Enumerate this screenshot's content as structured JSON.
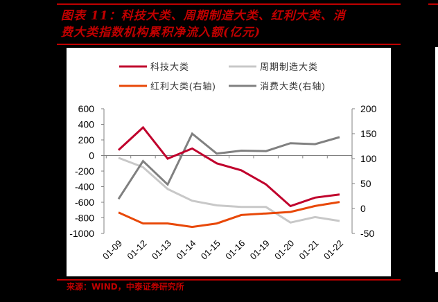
{
  "title": {
    "line1": "图表 11：科技大类、周期制造大类、红利大类、消",
    "line2": "费大类指数机构累积净流入额(亿元)"
  },
  "source": "来源：WIND，中泰证券研究所",
  "colors": {
    "title_red": "#c00000",
    "tech": "#c0002c",
    "cyclical": "#c8c8c8",
    "dividend": "#e84808",
    "consumer": "#808080",
    "axis": "#808080"
  },
  "legend": {
    "items": [
      {
        "label": "科技大类",
        "color": "#c0002c"
      },
      {
        "label": "周期制造大类",
        "color": "#c8c8c8"
      },
      {
        "label": "红利大类(右轴)",
        "color": "#e84808"
      },
      {
        "label": "消费大类(右轴)",
        "color": "#808080"
      }
    ]
  },
  "chart_data": {
    "type": "line",
    "title": "科技大类、周期制造大类、红利大类、消费大类指数机构累积净流入额(亿元)",
    "xlabel": "",
    "ylabel": "",
    "categories": [
      "01-09",
      "01-12",
      "01-13",
      "01-14",
      "01-15",
      "01-16",
      "01-19",
      "01-20",
      "01-21",
      "01-22"
    ],
    "left_axis": {
      "ylim": [
        -1000,
        600
      ],
      "ticks": [
        600,
        400,
        200,
        0,
        -200,
        -400,
        -600,
        -800,
        -1000
      ]
    },
    "right_axis": {
      "ylim": [
        -50,
        200
      ],
      "ticks": [
        200,
        150,
        100,
        50,
        0,
        -50
      ]
    },
    "series": [
      {
        "name": "科技大类",
        "axis": "left",
        "values": [
          70,
          360,
          -40,
          90,
          -100,
          -190,
          -370,
          -650,
          -540,
          -500
        ]
      },
      {
        "name": "周期制造大类",
        "axis": "left",
        "values": [
          -30,
          -150,
          -430,
          -580,
          -640,
          -660,
          -660,
          -860,
          -790,
          -840
        ]
      },
      {
        "name": "红利大类(右轴)",
        "axis": "right",
        "values": [
          -8,
          -30,
          -30,
          -37,
          -30,
          -13,
          -10,
          -7,
          5,
          13
        ]
      },
      {
        "name": "消费大类(右轴)",
        "axis": "right",
        "values": [
          19,
          95,
          48,
          150,
          110,
          116,
          115,
          131,
          129,
          143
        ]
      }
    ],
    "grid": false,
    "legend_position": "top"
  }
}
